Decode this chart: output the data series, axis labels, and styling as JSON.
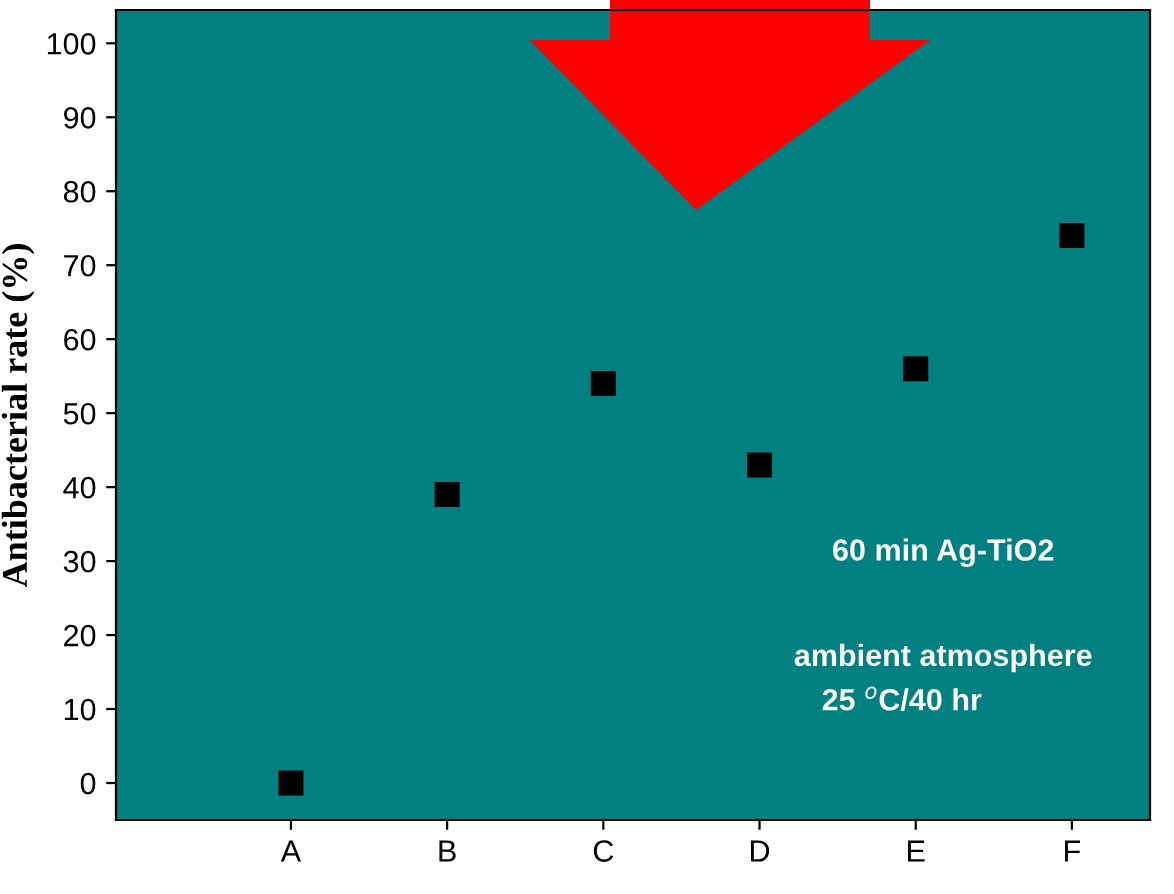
{
  "chart_data": {
    "type": "scatter",
    "ylabel": "Antibacterial rate (%)",
    "categories": [
      "A",
      "B",
      "C",
      "D",
      "E",
      "F"
    ],
    "values": [
      0,
      39,
      54,
      43,
      56,
      74
    ],
    "color": "#000000",
    "marker": "square",
    "ylim": [
      -5,
      104.5
    ],
    "yticks": [
      0,
      10,
      20,
      30,
      40,
      50,
      60,
      70,
      80,
      90,
      100
    ],
    "annotations": [
      "60 min Ag-TiO2",
      "ambient atmosphere",
      "25 $^{o}$C/40 hr"
    ]
  }
}
